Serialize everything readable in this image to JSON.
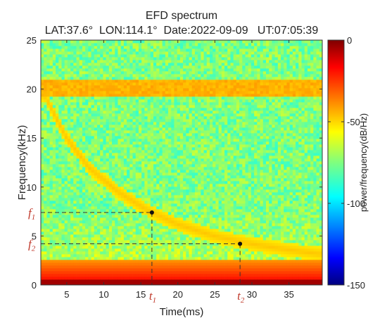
{
  "chart_data": {
    "type": "heatmap",
    "title": "EFD spectrum",
    "subtitle": "LAT:37.6°  LON:114.1°  Date:2022-09-09   UT:07:05:39",
    "xlabel": "Time(ms)",
    "ylabel": "Frequency(kHz)",
    "xlim": [
      1.5,
      39.5
    ],
    "ylim": [
      0,
      25
    ],
    "xticks": [
      "5",
      "10",
      "15",
      "20",
      "25",
      "30",
      "35"
    ],
    "xtick_values": [
      5,
      10,
      15,
      20,
      25,
      30,
      35
    ],
    "yticks": [
      "0",
      "5",
      "10",
      "15",
      "20",
      "25"
    ],
    "ytick_values": [
      0,
      5,
      10,
      15,
      20,
      25
    ],
    "colorbar": {
      "label": "power/frequency(dB/Hz)",
      "range": [
        -150,
        0
      ],
      "ticks": [
        "0",
        "-50",
        "-100",
        "-150"
      ],
      "tick_values": [
        0,
        -50,
        -100,
        -150
      ],
      "colormap": "jet"
    },
    "background_level_db": -75,
    "features": [
      {
        "kind": "horizontal-band",
        "freq_range_khz": [
          19.3,
          20.9
        ],
        "level_db": -45
      },
      {
        "kind": "horizontal-band",
        "freq_range_khz": [
          0,
          2.5
        ],
        "level_db": -40
      },
      {
        "kind": "horizontal-band",
        "freq_range_khz": [
          0,
          0.6
        ],
        "level_db": -5
      },
      {
        "kind": "whistler-trace",
        "level_db": -48,
        "points": [
          [
            2,
            19.4
          ],
          [
            5,
            15.0
          ],
          [
            8,
            12.0
          ],
          [
            12,
            9.5
          ],
          [
            16,
            7.6
          ],
          [
            20,
            6.2
          ],
          [
            25,
            5.0
          ],
          [
            30,
            4.2
          ],
          [
            35,
            3.6
          ],
          [
            39,
            3.2
          ]
        ]
      }
    ],
    "annotations": {
      "points": [
        {
          "name": "p1",
          "x": 16.5,
          "y": 7.4,
          "xlabel": "t",
          "xsub": "1",
          "ylabel": "f",
          "ysub": "1"
        },
        {
          "name": "p2",
          "x": 28.4,
          "y": 4.2,
          "xlabel": "t",
          "xsub": "2",
          "ylabel": "f",
          "ysub": "2"
        }
      ]
    }
  }
}
